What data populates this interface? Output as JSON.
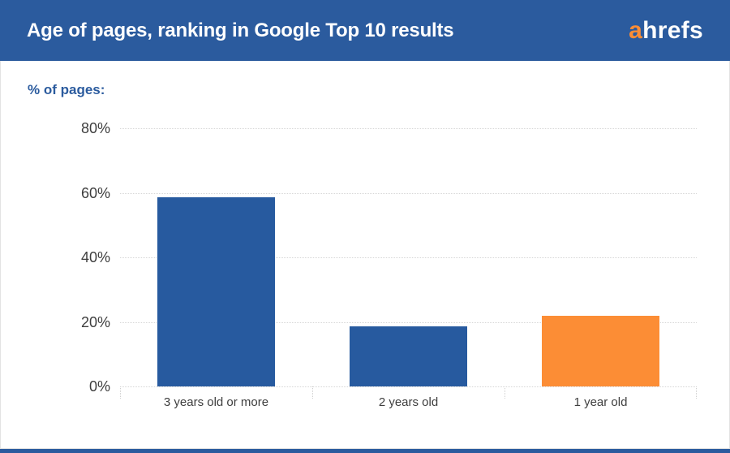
{
  "header": {
    "title": "Age of pages, ranking in Google Top 10 results",
    "logo": {
      "prefix": "a",
      "rest": "hrefs"
    }
  },
  "colors": {
    "header_bg": "#2b5b9e",
    "footer_bg": "#2b5b9e",
    "bar_blue": "#275a9f",
    "bar_orange": "#fc8d35",
    "axis_title_text": "#2b5b9e",
    "tick_text": "#3e3e3e",
    "gridline": "#d6d6d6",
    "card_border": "#e3e3e3",
    "title_text": "#ffffff",
    "logo_a": "#fc8d35",
    "logo_rest": "#ffffff"
  },
  "chart_data": {
    "type": "bar",
    "title": "Age of pages, ranking in Google Top 10 results",
    "axis_title": "% of pages:",
    "categories": [
      "3 years old or more",
      "2 years old",
      "1 year old"
    ],
    "values": [
      58.5,
      18.5,
      22
    ],
    "bar_colors": [
      "#275a9f",
      "#275a9f",
      "#fc8d35"
    ],
    "ylim": [
      0,
      80
    ],
    "ytick_values": [
      0,
      20,
      40,
      60,
      80
    ],
    "ytick_labels": [
      "0%",
      "20%",
      "40%",
      "60%",
      "80%"
    ],
    "grid": "horizontal-dotted",
    "legend_position": "none",
    "xlabel": "",
    "ylabel": "% of pages"
  }
}
